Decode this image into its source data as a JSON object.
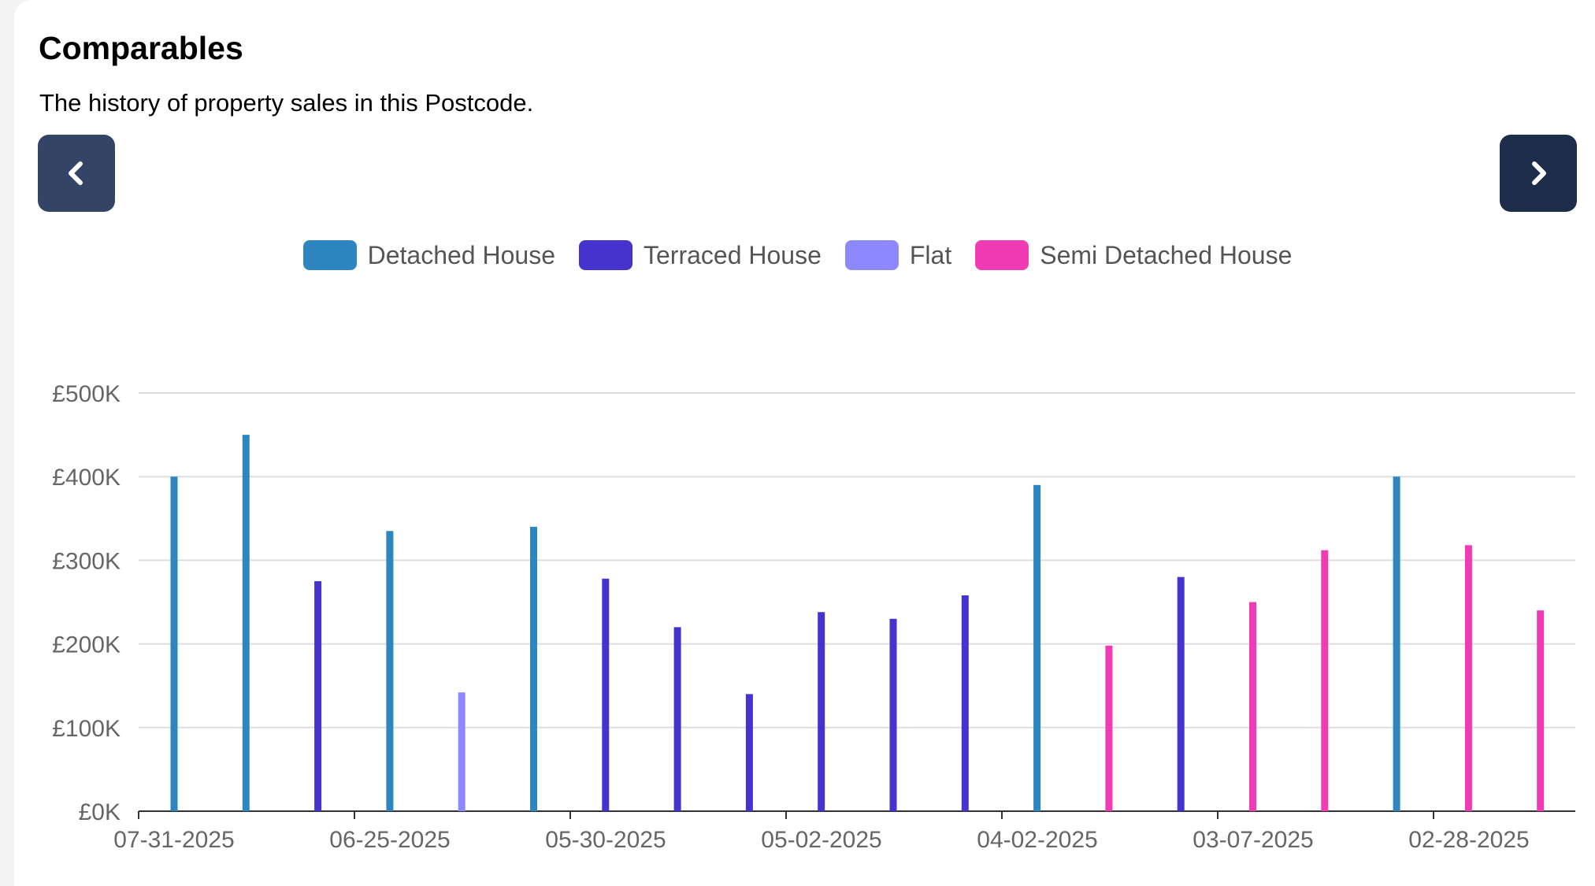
{
  "header": {
    "title": "Comparables",
    "subtitle": "The history of property sales in this Postcode."
  },
  "nav": {
    "prev_icon": "chevron-left-icon",
    "next_icon": "chevron-right-icon",
    "prev_color": "#334466",
    "next_color": "#1e2d4a"
  },
  "chart_data": {
    "type": "bar",
    "title": "",
    "xlabel": "",
    "ylabel": "",
    "ylim": [
      0,
      500000
    ],
    "yticks": [
      0,
      100000,
      200000,
      300000,
      400000,
      500000
    ],
    "ytick_labels": [
      "£0K",
      "£100K",
      "£200K",
      "£300K",
      "£400K",
      "£500K"
    ],
    "xtick_labels": [
      "07-31-2025",
      "06-25-2025",
      "05-30-2025",
      "05-02-2025",
      "04-02-2025",
      "03-07-2025",
      "02-28-2025"
    ],
    "grid": true,
    "legend_position": "top-center",
    "series": [
      {
        "name": "Detached House",
        "color": "#2e86c1"
      },
      {
        "name": "Terraced House",
        "color": "#4433cc"
      },
      {
        "name": "Flat",
        "color": "#8e88ff"
      },
      {
        "name": "Semi Detached House",
        "color": "#f03cb4"
      }
    ],
    "bars": [
      {
        "type": "Detached House",
        "value": 400000
      },
      {
        "type": "Detached House",
        "value": 450000
      },
      {
        "type": "Terraced House",
        "value": 275000
      },
      {
        "type": "Detached House",
        "value": 335000
      },
      {
        "type": "Flat",
        "value": 142000
      },
      {
        "type": "Detached House",
        "value": 340000
      },
      {
        "type": "Terraced House",
        "value": 278000
      },
      {
        "type": "Terraced House",
        "value": 220000
      },
      {
        "type": "Terraced House",
        "value": 140000
      },
      {
        "type": "Terraced House",
        "value": 238000
      },
      {
        "type": "Terraced House",
        "value": 230000
      },
      {
        "type": "Terraced House",
        "value": 258000
      },
      {
        "type": "Detached House",
        "value": 390000
      },
      {
        "type": "Semi Detached House",
        "value": 198000
      },
      {
        "type": "Terraced House",
        "value": 280000
      },
      {
        "type": "Semi Detached House",
        "value": 250000
      },
      {
        "type": "Semi Detached House",
        "value": 312000
      },
      {
        "type": "Detached House",
        "value": 400000
      },
      {
        "type": "Semi Detached House",
        "value": 318000
      },
      {
        "type": "Semi Detached House",
        "value": 240000
      }
    ]
  }
}
